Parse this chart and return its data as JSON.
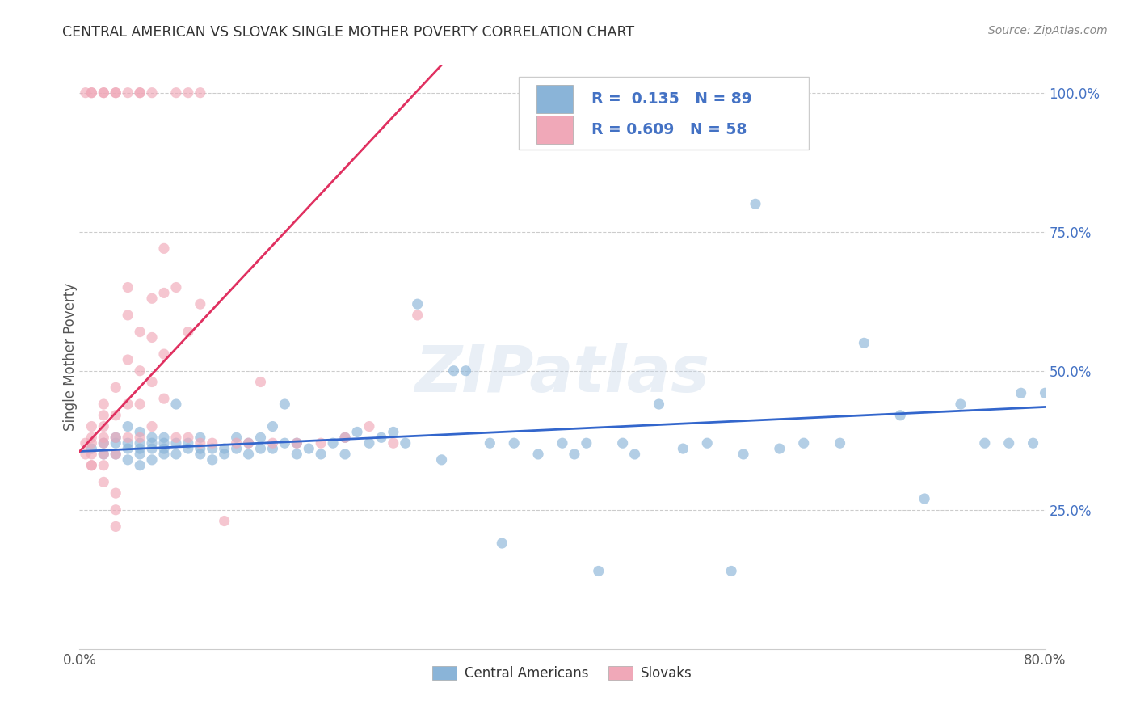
{
  "title": "CENTRAL AMERICAN VS SLOVAK SINGLE MOTHER POVERTY CORRELATION CHART",
  "source": "Source: ZipAtlas.com",
  "ylabel": "Single Mother Poverty",
  "xlim": [
    0.0,
    0.8
  ],
  "ylim": [
    0.0,
    1.05
  ],
  "xticks": [
    0.0,
    0.1,
    0.2,
    0.3,
    0.4,
    0.5,
    0.6,
    0.7,
    0.8
  ],
  "xticklabels": [
    "0.0%",
    "",
    "",
    "",
    "",
    "",
    "",
    "",
    "80.0%"
  ],
  "yticks": [
    0.25,
    0.5,
    0.75,
    1.0
  ],
  "yticklabels": [
    "25.0%",
    "50.0%",
    "75.0%",
    "100.0%"
  ],
  "blue_color": "#8ab4d8",
  "pink_color": "#f0a8b8",
  "blue_line_color": "#3366cc",
  "pink_line_color": "#e03060",
  "watermark": "ZIPatlas",
  "legend_label_blue": "Central Americans",
  "legend_label_pink": "Slovaks",
  "background_color": "#ffffff",
  "grid_color": "#cccccc",
  "R_blue": 0.135,
  "N_blue": 89,
  "R_pink": 0.609,
  "N_pink": 58,
  "blue_line_x0": 0.0,
  "blue_line_y0": 0.355,
  "blue_line_x1": 0.8,
  "blue_line_y1": 0.435,
  "pink_line_x0": 0.0,
  "pink_line_y0": 0.355,
  "pink_line_x1": 0.3,
  "pink_line_y1": 1.05,
  "blue_x": [
    0.01,
    0.02,
    0.02,
    0.03,
    0.03,
    0.03,
    0.04,
    0.04,
    0.04,
    0.04,
    0.05,
    0.05,
    0.05,
    0.05,
    0.05,
    0.06,
    0.06,
    0.06,
    0.06,
    0.07,
    0.07,
    0.07,
    0.07,
    0.08,
    0.08,
    0.08,
    0.09,
    0.09,
    0.1,
    0.1,
    0.1,
    0.11,
    0.11,
    0.12,
    0.12,
    0.13,
    0.13,
    0.14,
    0.14,
    0.15,
    0.15,
    0.16,
    0.16,
    0.17,
    0.17,
    0.18,
    0.18,
    0.19,
    0.2,
    0.21,
    0.22,
    0.22,
    0.23,
    0.24,
    0.25,
    0.26,
    0.27,
    0.28,
    0.3,
    0.31,
    0.32,
    0.34,
    0.35,
    0.36,
    0.38,
    0.4,
    0.41,
    0.42,
    0.43,
    0.45,
    0.46,
    0.48,
    0.5,
    0.52,
    0.54,
    0.55,
    0.56,
    0.58,
    0.6,
    0.63,
    0.65,
    0.68,
    0.7,
    0.73,
    0.75,
    0.77,
    0.78,
    0.79,
    0.8
  ],
  "blue_y": [
    0.36,
    0.35,
    0.37,
    0.35,
    0.37,
    0.38,
    0.34,
    0.36,
    0.37,
    0.4,
    0.33,
    0.35,
    0.36,
    0.37,
    0.39,
    0.34,
    0.36,
    0.37,
    0.38,
    0.35,
    0.36,
    0.37,
    0.38,
    0.35,
    0.37,
    0.44,
    0.36,
    0.37,
    0.35,
    0.36,
    0.38,
    0.34,
    0.36,
    0.35,
    0.36,
    0.36,
    0.38,
    0.35,
    0.37,
    0.36,
    0.38,
    0.36,
    0.4,
    0.37,
    0.44,
    0.35,
    0.37,
    0.36,
    0.35,
    0.37,
    0.35,
    0.38,
    0.39,
    0.37,
    0.38,
    0.39,
    0.37,
    0.62,
    0.34,
    0.5,
    0.5,
    0.37,
    0.19,
    0.37,
    0.35,
    0.37,
    0.35,
    0.37,
    0.14,
    0.37,
    0.35,
    0.44,
    0.36,
    0.37,
    0.14,
    0.35,
    0.8,
    0.36,
    0.37,
    0.37,
    0.55,
    0.42,
    0.27,
    0.44,
    0.37,
    0.37,
    0.46,
    0.37,
    0.46
  ],
  "pink_x": [
    0.005,
    0.005,
    0.01,
    0.01,
    0.01,
    0.01,
    0.01,
    0.02,
    0.02,
    0.02,
    0.02,
    0.02,
    0.02,
    0.02,
    0.03,
    0.03,
    0.03,
    0.03,
    0.03,
    0.04,
    0.04,
    0.04,
    0.04,
    0.04,
    0.05,
    0.05,
    0.05,
    0.05,
    0.06,
    0.06,
    0.06,
    0.06,
    0.07,
    0.07,
    0.07,
    0.07,
    0.08,
    0.08,
    0.09,
    0.09,
    0.1,
    0.1,
    0.11,
    0.12,
    0.13,
    0.14,
    0.15,
    0.16,
    0.18,
    0.2,
    0.22,
    0.24,
    0.26,
    0.28,
    0.01,
    0.02,
    0.03,
    0.03
  ],
  "pink_y": [
    0.35,
    0.37,
    0.33,
    0.35,
    0.37,
    0.38,
    0.4,
    0.33,
    0.35,
    0.37,
    0.38,
    0.4,
    0.42,
    0.44,
    0.35,
    0.38,
    0.42,
    0.47,
    0.22,
    0.38,
    0.44,
    0.52,
    0.6,
    0.65,
    0.38,
    0.44,
    0.5,
    0.57,
    0.4,
    0.48,
    0.56,
    0.63,
    0.45,
    0.53,
    0.64,
    0.72,
    0.38,
    0.65,
    0.38,
    0.57,
    0.37,
    0.62,
    0.37,
    0.23,
    0.37,
    0.37,
    0.48,
    0.37,
    0.37,
    0.37,
    0.38,
    0.4,
    0.37,
    0.6,
    0.33,
    0.3,
    0.25,
    0.28
  ],
  "top_pink_x": [
    0.005,
    0.01,
    0.01,
    0.02,
    0.02,
    0.03,
    0.03,
    0.04,
    0.05,
    0.05,
    0.06,
    0.08,
    0.09,
    0.1
  ],
  "top_pink_y": [
    1.0,
    1.0,
    1.0,
    1.0,
    1.0,
    1.0,
    1.0,
    1.0,
    1.0,
    1.0,
    1.0,
    1.0,
    1.0,
    1.0
  ]
}
